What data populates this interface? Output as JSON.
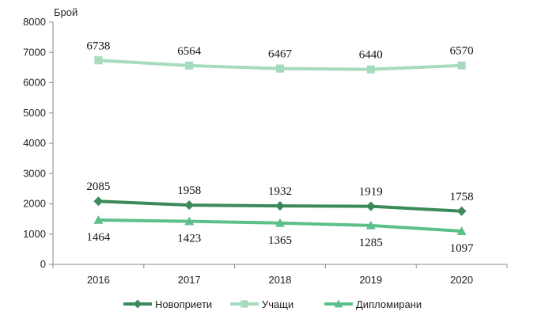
{
  "chart_data": {
    "type": "line",
    "ylabel": "Брой",
    "ylim": [
      0,
      8000
    ],
    "yticks": [
      0,
      1000,
      2000,
      3000,
      4000,
      5000,
      6000,
      7000,
      8000
    ],
    "categories": [
      "2016",
      "2017",
      "2018",
      "2019",
      "2020"
    ],
    "legend_position": "bottom",
    "grid": false,
    "series": [
      {
        "name": "Новоприети",
        "values": [
          2085,
          1958,
          1932,
          1919,
          1758
        ],
        "color": "#3a8a5a",
        "marker": "diamond",
        "label_pos": "above"
      },
      {
        "name": "Учащи",
        "values": [
          6738,
          6564,
          6467,
          6440,
          6570
        ],
        "color": "#a6dcbd",
        "marker": "square",
        "label_pos": "above"
      },
      {
        "name": "Дипломирани",
        "values": [
          1464,
          1423,
          1365,
          1285,
          1097
        ],
        "color": "#5cc08a",
        "marker": "triangle",
        "label_pos": "below"
      }
    ]
  }
}
